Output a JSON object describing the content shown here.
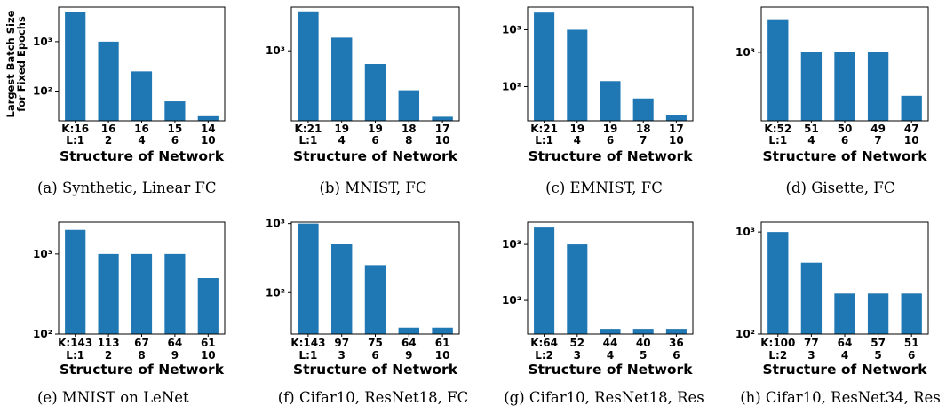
{
  "chart_data": [
    {
      "type": "bar",
      "caption": "(a) Synthetic, Linear FC",
      "ylabel": [
        "Largest Batch Size",
        "for Fixed Epochs"
      ],
      "xlabel": "Structure of Network",
      "categories": [
        [
          "K:16",
          "L:1"
        ],
        [
          "16",
          "2"
        ],
        [
          "16",
          "4"
        ],
        [
          "15",
          "6"
        ],
        [
          "14",
          "10"
        ]
      ],
      "values": [
        4000,
        1000,
        250,
        62,
        31
      ],
      "yscale": "log",
      "ylim": [
        25,
        5000
      ],
      "yticks": [
        100,
        1000
      ]
    },
    {
      "type": "bar",
      "caption": "(b) MNIST, FC",
      "xlabel": "Structure of Network",
      "categories": [
        [
          "K:21",
          "L:1"
        ],
        [
          "19",
          "4"
        ],
        [
          "19",
          "6"
        ],
        [
          "18",
          "8"
        ],
        [
          "17",
          "10"
        ]
      ],
      "values": [
        8000,
        2000,
        500,
        125,
        31
      ],
      "yscale": "log",
      "ylim": [
        25,
        10000
      ],
      "yticks": [
        1000
      ]
    },
    {
      "type": "bar",
      "caption": "(c) EMNIST, FC",
      "xlabel": "Structure of Network",
      "categories": [
        [
          "K:21",
          "L:1"
        ],
        [
          "19",
          "4"
        ],
        [
          "19",
          "6"
        ],
        [
          "18",
          "7"
        ],
        [
          "17",
          "10"
        ]
      ],
      "values": [
        2000,
        1000,
        125,
        62,
        31
      ],
      "yscale": "log",
      "ylim": [
        25,
        2500
      ],
      "yticks": [
        100,
        1000
      ]
    },
    {
      "type": "bar",
      "caption": "(d) Gisette, FC",
      "xlabel": "Structure of Network",
      "categories": [
        [
          "K:52",
          "L:1"
        ],
        [
          "51",
          "4"
        ],
        [
          "50",
          "6"
        ],
        [
          "49",
          "7"
        ],
        [
          "47",
          "10"
        ]
      ],
      "values": [
        2500,
        1000,
        1000,
        1000,
        300
      ],
      "yscale": "log",
      "ylim": [
        150,
        3500
      ],
      "yticks": [
        1000
      ]
    },
    {
      "type": "bar",
      "caption": "(e) MNIST on LeNet",
      "xlabel": "Structure of Network",
      "categories": [
        [
          "K:143",
          "L:1"
        ],
        [
          "113",
          "2"
        ],
        [
          "67",
          "8"
        ],
        [
          "64",
          "9"
        ],
        [
          "61",
          "10"
        ]
      ],
      "values": [
        2000,
        1000,
        1000,
        1000,
        500
      ],
      "yscale": "log",
      "ylim": [
        100,
        2500
      ],
      "yticks": [
        100,
        1000
      ]
    },
    {
      "type": "bar",
      "caption": "(f) Cifar10, ResNet18, FC",
      "xlabel": "Structure of Network",
      "categories": [
        [
          "K:143",
          "L:1"
        ],
        [
          "97",
          "3"
        ],
        [
          "75",
          "6"
        ],
        [
          "64",
          "9"
        ],
        [
          "61",
          "10"
        ]
      ],
      "values": [
        1000,
        500,
        250,
        31,
        31
      ],
      "yscale": "log",
      "ylim": [
        25,
        1050
      ],
      "yticks": [
        100,
        1000
      ]
    },
    {
      "type": "bar",
      "caption": "(g) Cifar10, ResNet18, Res",
      "xlabel": "Structure of Network",
      "categories": [
        [
          "K:64",
          "L:2"
        ],
        [
          "52",
          "3"
        ],
        [
          "44",
          "4"
        ],
        [
          "40",
          "5"
        ],
        [
          "36",
          "6"
        ]
      ],
      "values": [
        2000,
        1000,
        31,
        31,
        31
      ],
      "yscale": "log",
      "ylim": [
        25,
        2500
      ],
      "yticks": [
        100,
        1000
      ]
    },
    {
      "type": "bar",
      "caption": "(h) Cifar10, ResNet34, Res",
      "xlabel": "Structure of Network",
      "categories": [
        [
          "K:100",
          "L:2"
        ],
        [
          "77",
          "3"
        ],
        [
          "64",
          "4"
        ],
        [
          "57",
          "5"
        ],
        [
          "51",
          "6"
        ]
      ],
      "values": [
        1000,
        500,
        250,
        250,
        250
      ],
      "yscale": "log",
      "ylim": [
        100,
        1250
      ],
      "yticks": [
        100,
        1000
      ]
    }
  ],
  "colors": {
    "bar": "#1f77b4",
    "axis": "#000000"
  }
}
